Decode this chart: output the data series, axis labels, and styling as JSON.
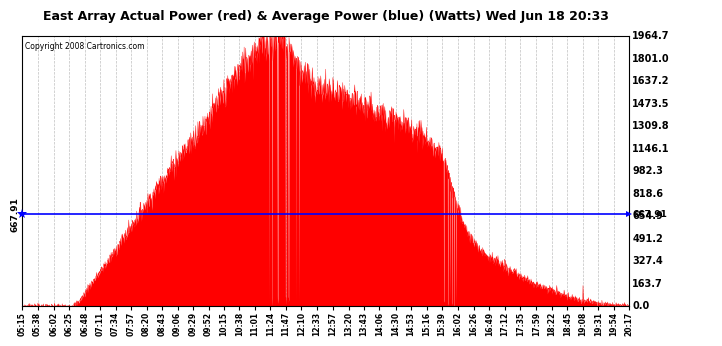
{
  "title": "East Array Actual Power (red) & Average Power (blue) (Watts) Wed Jun 18 20:33",
  "copyright": "Copyright 2008 Cartronics.com",
  "avg_power": 667.91,
  "y_max": 1964.7,
  "y_min": 0.0,
  "y_ticks": [
    0.0,
    163.7,
    327.4,
    491.2,
    654.9,
    818.6,
    982.3,
    1146.1,
    1309.8,
    1473.5,
    1637.2,
    1801.0,
    1964.7
  ],
  "background_color": "#ffffff",
  "fill_color": "#ff0000",
  "line_color": "#0000ff",
  "grid_color": "#b0b0b0",
  "title_fontsize": 9,
  "copyright_fontsize": 6,
  "x_labels": [
    "05:15",
    "05:38",
    "06:02",
    "06:25",
    "06:48",
    "07:11",
    "07:34",
    "07:57",
    "08:20",
    "08:43",
    "09:06",
    "09:29",
    "09:52",
    "10:15",
    "10:38",
    "11:01",
    "11:24",
    "11:47",
    "12:10",
    "12:33",
    "12:57",
    "13:20",
    "13:43",
    "14:06",
    "14:30",
    "14:53",
    "15:16",
    "15:39",
    "16:02",
    "16:26",
    "16:49",
    "17:12",
    "17:35",
    "17:59",
    "18:22",
    "18:45",
    "19:08",
    "19:31",
    "19:54",
    "20:17"
  ]
}
